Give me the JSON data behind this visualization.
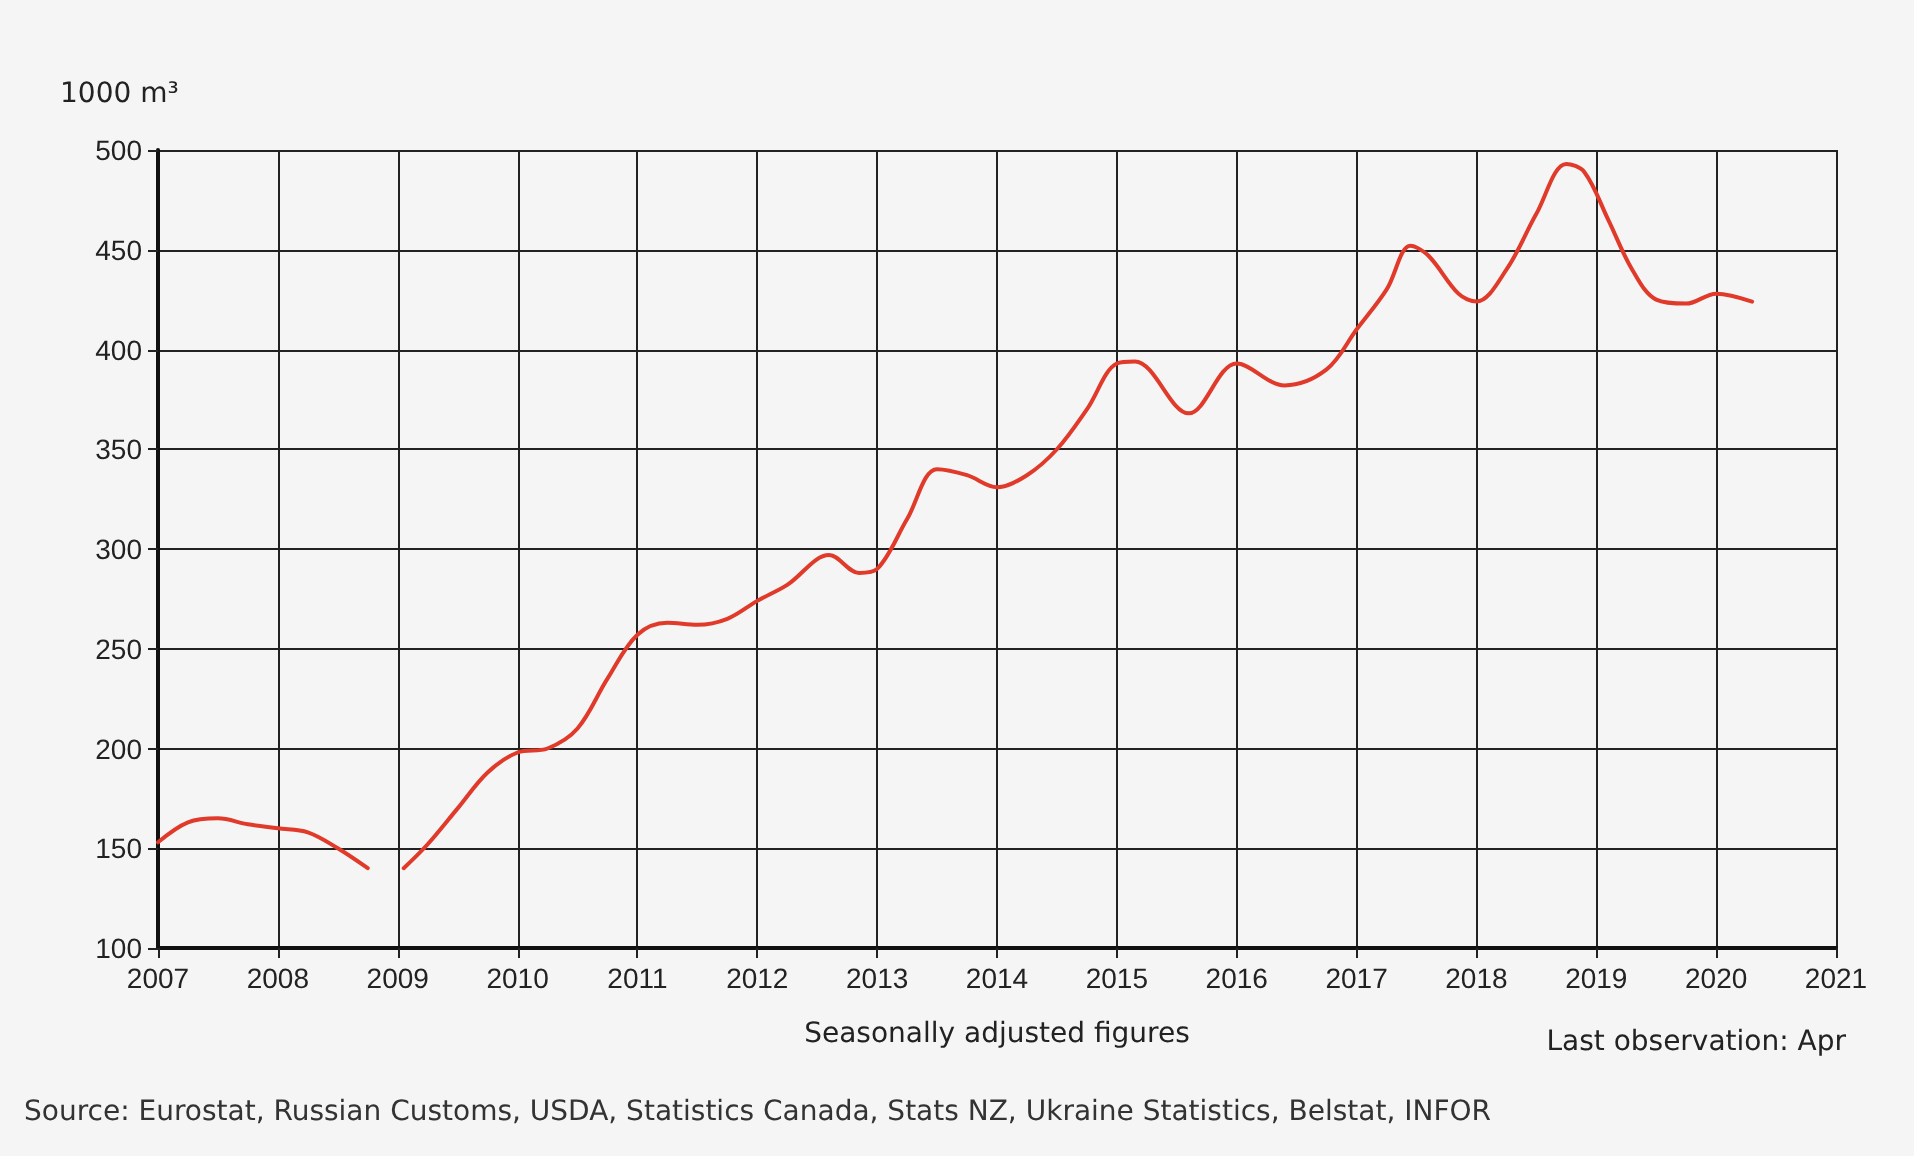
{
  "chart_data": {
    "type": "line",
    "ylabel": "1000 m³",
    "xlabel": "Seasonally adjusted figures",
    "annotations": [
      "Last observation: Apr",
      "Source: Eurostat, Russian Customs, USDA, Statistics Canada, Stats NZ, Ukraine Statistics, Belstat, INFOR"
    ],
    "x": [
      2007.0,
      2007.25,
      2007.5,
      2007.75,
      2008.0,
      2008.25,
      2008.5,
      2008.75,
      2008.9,
      2009.05,
      2009.25,
      2009.5,
      2009.75,
      2010.0,
      2010.25,
      2010.5,
      2010.75,
      2011.0,
      2011.25,
      2011.5,
      2011.75,
      2012.0,
      2012.25,
      2012.6,
      2012.85,
      2013.0,
      2013.25,
      2013.5,
      2013.75,
      2014.0,
      2014.25,
      2014.5,
      2014.75,
      2015.0,
      2015.15,
      2015.6,
      2016.0,
      2016.4,
      2016.75,
      2017.0,
      2017.25,
      2017.45,
      2017.6,
      2017.85,
      2018.0,
      2018.25,
      2018.5,
      2018.75,
      2018.9,
      2019.1,
      2019.3,
      2019.5,
      2019.75,
      2020.0,
      2020.3
    ],
    "series": [
      {
        "color": "#e03a2a",
        "values": [
          153,
          163,
          165,
          162,
          160,
          158,
          150,
          140,
          null,
          140,
          152,
          170,
          188,
          198,
          200,
          210,
          235,
          257,
          263,
          262,
          265,
          274,
          282,
          297,
          288,
          290,
          315,
          340,
          337,
          331,
          337,
          350,
          370,
          393,
          394,
          368,
          393,
          382,
          390,
          410,
          430,
          452,
          447,
          428,
          424,
          440,
          468,
          493,
          489,
          465,
          440,
          425,
          423,
          428,
          424
        ]
      }
    ],
    "xlim": [
      2007,
      2021
    ],
    "xticks": [
      2007,
      2008,
      2009,
      2010,
      2011,
      2012,
      2013,
      2014,
      2015,
      2016,
      2017,
      2018,
      2019,
      2020,
      2021
    ],
    "ylim": [
      100,
      500
    ],
    "yticks": [
      100,
      150,
      200,
      250,
      300,
      350,
      400,
      450,
      500
    ],
    "grid": true,
    "marker": "none",
    "line_style": "solid"
  }
}
